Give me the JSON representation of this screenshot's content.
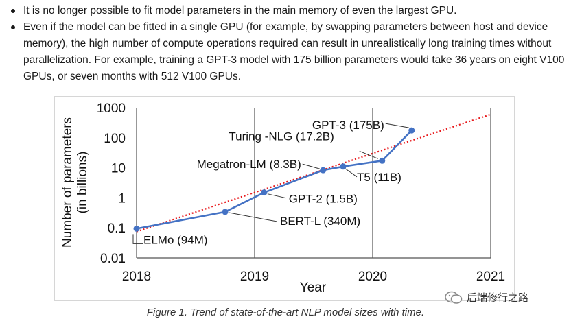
{
  "bullets": [
    "It is no longer possible to fit model parameters in the main memory of even the largest GPU.",
    "Even if the model can be fitted in a single GPU (for example, by swapping parameters between host and device memory), the high number of compute operations required can result in unrealistically long training times without parallelization. For example, training a GPT-3 model with 175 billion parameters would take 36 years on eight V100 GPUs, or seven months with 512 V100 GPUs."
  ],
  "chart_data": {
    "type": "line",
    "xlabel": "Year",
    "ylabel_line1": "Number of parameters",
    "ylabel_line2": "(in billions)",
    "y_scale": "log",
    "ylim": [
      0.01,
      1000
    ],
    "xlim": [
      2018,
      2021
    ],
    "x_ticks": [
      "2018",
      "2019",
      "2020",
      "2021"
    ],
    "y_ticks": [
      "0.01",
      "0.1",
      "1",
      "10",
      "100",
      "1000"
    ],
    "grid": "vertical",
    "series": [
      {
        "points": [
          {
            "x": 2018.0,
            "y": 0.094,
            "label": "ELMo (94M)"
          },
          {
            "x": 2018.75,
            "y": 0.34,
            "label": "BERT-L (340M)"
          },
          {
            "x": 2019.08,
            "y": 1.5,
            "label": "GPT-2 (1.5B)"
          },
          {
            "x": 2019.58,
            "y": 8.3,
            "label": "Megatron-LM (8.3B)"
          },
          {
            "x": 2019.75,
            "y": 11,
            "label": "T5 (11B)"
          },
          {
            "x": 2020.08,
            "y": 17.2,
            "label": "Turing -NLG (17.2B)"
          },
          {
            "x": 2020.33,
            "y": 175,
            "label": "GPT-3 (175B)"
          }
        ]
      }
    ],
    "trendline": {
      "x": [
        2018.0,
        2021.0
      ],
      "y": [
        0.075,
        600
      ],
      "style": "dotted"
    },
    "colors": {
      "series": "#4472c4",
      "trend": "#e8191c",
      "grid": "#555555"
    }
  },
  "caption": "Figure 1. Trend of state-of-the-art NLP model sizes with time.",
  "watermark": "后端修行之路"
}
